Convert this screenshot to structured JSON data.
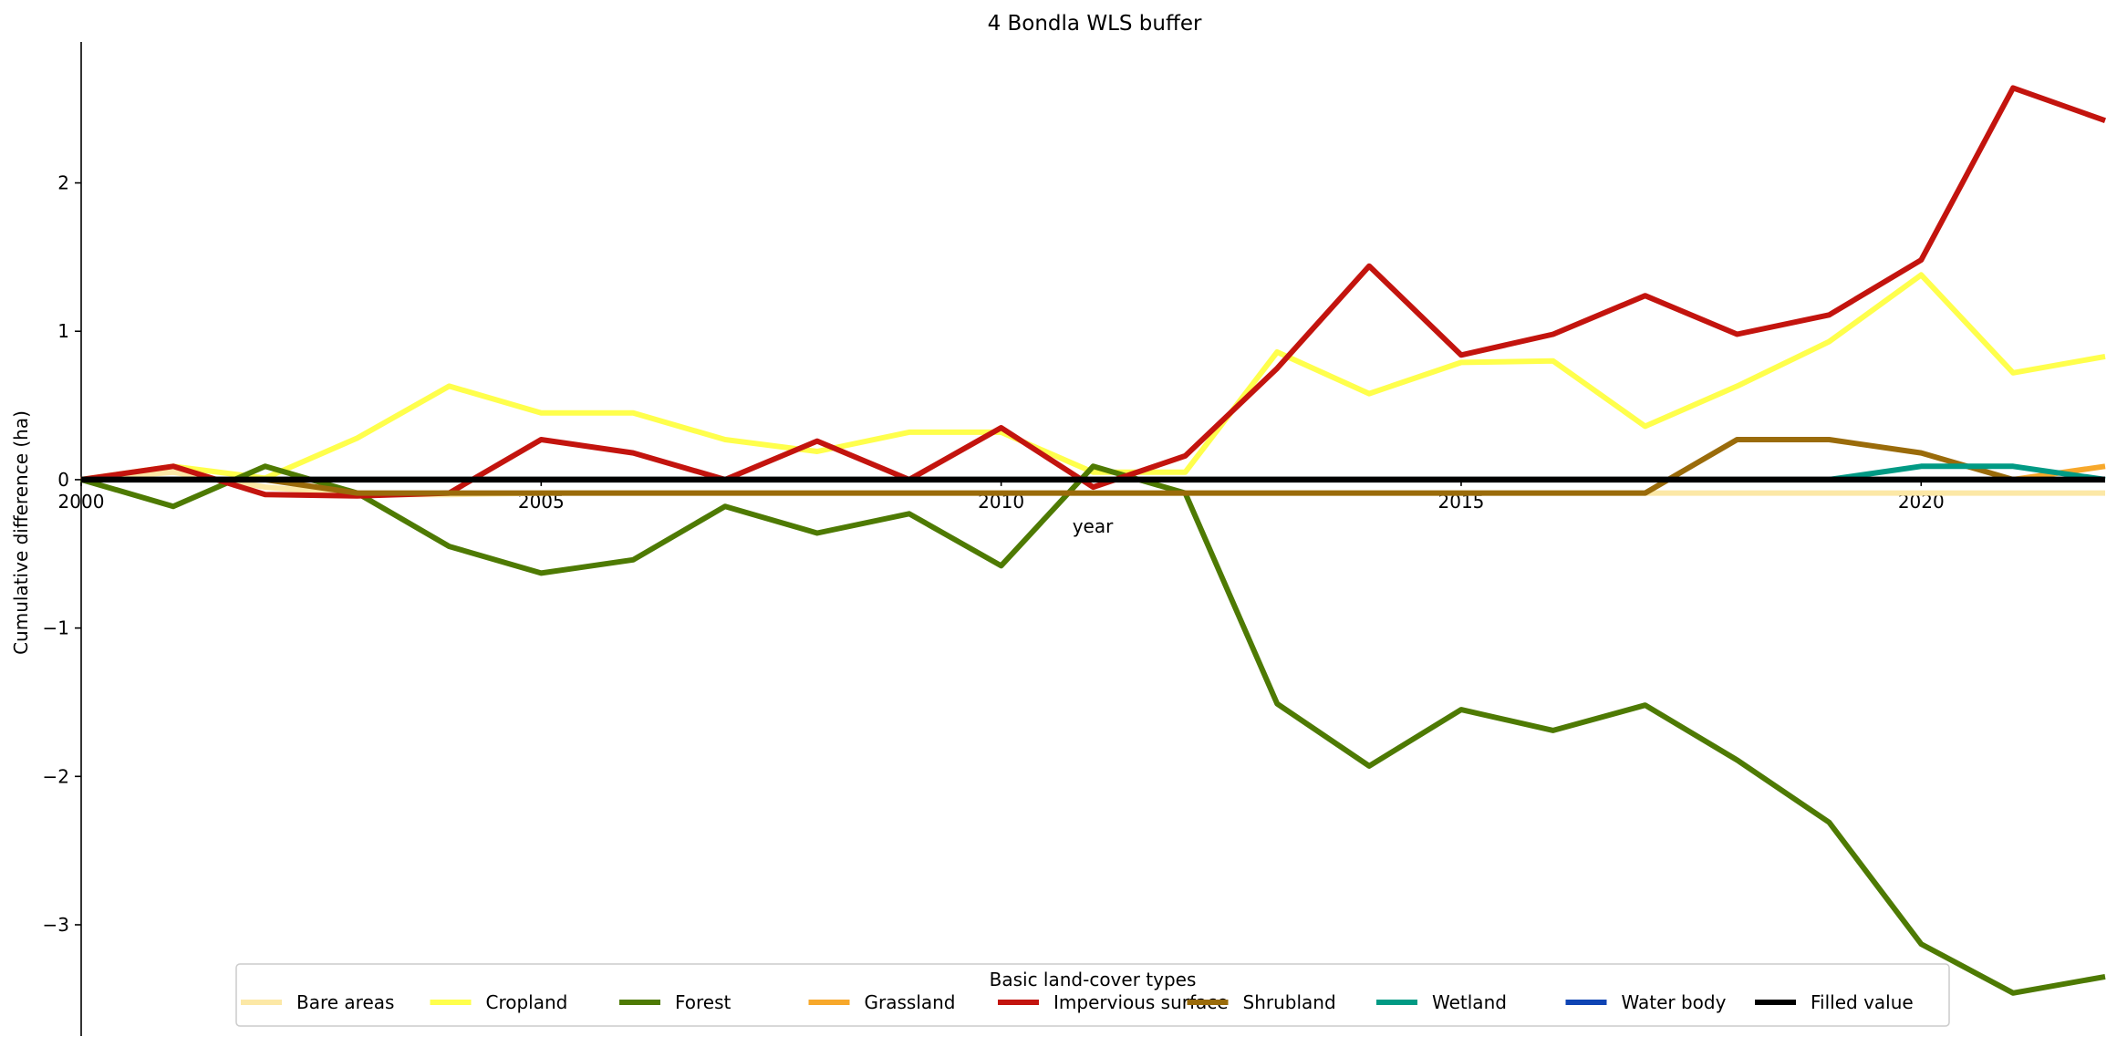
{
  "chart_data": {
    "type": "line",
    "title": "4 Bondla WLS buffer",
    "xlabel": "year",
    "ylabel": "Cumulative difference (ha)",
    "xlim": [
      2000,
      2022
    ],
    "ylim": [
      -3.75,
      2.95
    ],
    "x_ticks": [
      2000,
      2005,
      2010,
      2015,
      2020
    ],
    "y_ticks": [
      -3,
      -2,
      -1,
      0,
      1,
      2
    ],
    "y_tick_labels": [
      "−3",
      "−2",
      "−1",
      "0",
      "1",
      "2"
    ],
    "grid": false,
    "legend": {
      "title": "Basic land-cover types",
      "placement": "lower-center",
      "columns": 9
    },
    "x": [
      2000,
      2001,
      2002,
      2003,
      2004,
      2005,
      2006,
      2007,
      2008,
      2009,
      2010,
      2011,
      2012,
      2013,
      2014,
      2015,
      2016,
      2017,
      2018,
      2019,
      2020,
      2021,
      2022
    ],
    "series": [
      {
        "name": "Bare areas",
        "color": "#fce8a6",
        "values": [
          0,
          0.05,
          -0.05,
          -0.1,
          -0.1,
          -0.09,
          -0.09,
          -0.09,
          -0.09,
          -0.09,
          -0.09,
          -0.09,
          -0.09,
          -0.09,
          -0.09,
          -0.09,
          -0.09,
          -0.09,
          -0.09,
          -0.09,
          -0.09,
          -0.09,
          -0.09
        ]
      },
      {
        "name": "Cropland",
        "color": "#ffff4c",
        "values": [
          0,
          0.09,
          0.01,
          0.28,
          0.63,
          0.45,
          0.45,
          0.27,
          0.19,
          0.32,
          0.32,
          0.05,
          0.05,
          0.86,
          0.58,
          0.79,
          0.8,
          0.36,
          0.63,
          0.93,
          1.38,
          0.72,
          0.83
        ]
      },
      {
        "name": "Forest",
        "color": "#4e7a03",
        "values": [
          0,
          -0.18,
          0.09,
          -0.09,
          -0.45,
          -0.63,
          -0.54,
          -0.18,
          -0.36,
          -0.23,
          -0.58,
          0.09,
          -0.09,
          -1.51,
          -1.93,
          -1.55,
          -1.69,
          -1.52,
          -1.89,
          -2.31,
          -3.13,
          -3.46,
          -3.35
        ]
      },
      {
        "name": "Grassland",
        "color": "#f7a82b",
        "values": [
          0,
          0,
          0,
          0,
          0,
          0,
          0,
          0,
          0,
          0,
          0,
          0,
          0,
          0,
          0,
          0,
          0,
          0,
          0,
          0,
          0,
          0,
          0.09
        ]
      },
      {
        "name": "Impervious surface",
        "color": "#c3140e",
        "values": [
          0,
          0.09,
          -0.1,
          -0.11,
          -0.09,
          0.27,
          0.18,
          0,
          0.26,
          0,
          0.35,
          -0.05,
          0.16,
          0.75,
          1.44,
          0.84,
          0.98,
          1.24,
          0.98,
          1.11,
          1.48,
          2.64,
          2.42
        ]
      },
      {
        "name": "Shrubland",
        "color": "#9a6b0a",
        "values": [
          0,
          0,
          0,
          -0.09,
          -0.09,
          -0.09,
          -0.09,
          -0.09,
          -0.09,
          -0.09,
          -0.09,
          -0.09,
          -0.09,
          -0.09,
          -0.09,
          -0.09,
          -0.09,
          -0.09,
          0.27,
          0.27,
          0.18,
          0,
          0
        ]
      },
      {
        "name": "Wetland",
        "color": "#009a84",
        "values": [
          0,
          0,
          0,
          0,
          0,
          0,
          0,
          0,
          0,
          0,
          0,
          0,
          0,
          0,
          0,
          0,
          0,
          0,
          0,
          0,
          0.09,
          0.09,
          0
        ]
      },
      {
        "name": "Water body",
        "color": "#0f44b4",
        "values": [
          0,
          0,
          0,
          0,
          0,
          0,
          0,
          0,
          0,
          0,
          0,
          0,
          0,
          0,
          0,
          0,
          0,
          0,
          0,
          0,
          0,
          0,
          0
        ]
      },
      {
        "name": "Filled value",
        "color": "#000000",
        "values": [
          0,
          0,
          0,
          0,
          0,
          0,
          0,
          0,
          0,
          0,
          0,
          0,
          0,
          0,
          0,
          0,
          0,
          0,
          0,
          0,
          0,
          0,
          0
        ]
      }
    ]
  }
}
